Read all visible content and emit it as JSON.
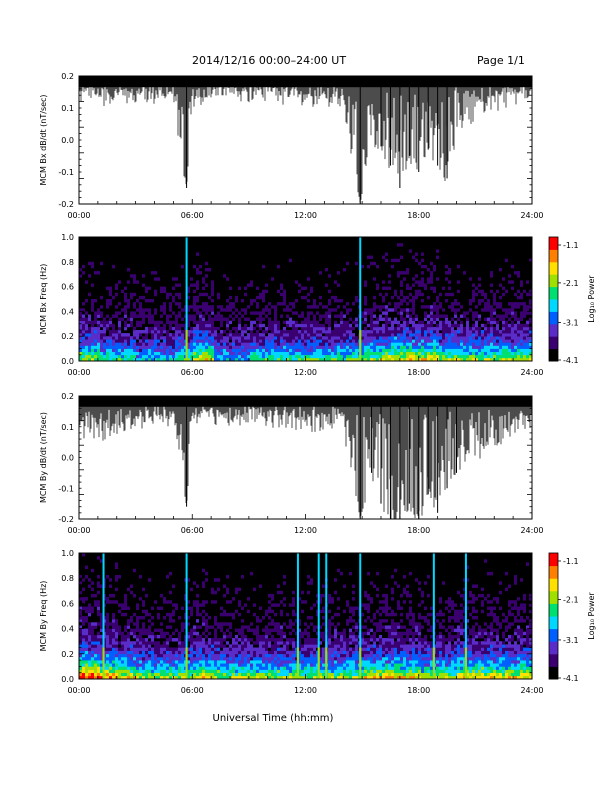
{
  "header": {
    "title": "2014/12/16  00:00–24:00 UT",
    "page": "Page 1/1"
  },
  "chart_data": [
    {
      "type": "line",
      "ylabel": "MCM Bx dB/dt (nT/sec)",
      "ylim": [
        -0.2,
        0.2
      ],
      "yticks": [
        "-0.2",
        "-0.1",
        "0.0",
        "0.1",
        "0.2"
      ],
      "xlim": [
        0,
        24
      ],
      "xticks": [
        "00:00",
        "06:00",
        "12:00",
        "18:00",
        "24:00"
      ],
      "series": [
        {
          "x": [
            0,
            1,
            2,
            3,
            4,
            5,
            5.7,
            6,
            7,
            8,
            9,
            10,
            11,
            12,
            13,
            14,
            14.9,
            15.5,
            16,
            16.5,
            17,
            17.5,
            18,
            18.5,
            19,
            19.5,
            20,
            21,
            22,
            23,
            24
          ],
          "y": [
            0.13,
            0.12,
            0.13,
            0.12,
            0.13,
            0.12,
            -0.15,
            0.12,
            0.13,
            0.14,
            0.13,
            0.13,
            0.12,
            0.12,
            0.12,
            0.11,
            -0.2,
            0.0,
            -0.02,
            -0.08,
            -0.15,
            -0.05,
            -0.1,
            -0.03,
            -0.08,
            -0.12,
            0.02,
            0.08,
            0.1,
            0.12,
            0.13
          ]
        }
      ]
    },
    {
      "type": "heatmap",
      "ylabel": "MCM Bx Freq (Hz)",
      "ylim": [
        0.0,
        1.0
      ],
      "yticks": [
        "0.0",
        "0.2",
        "0.4",
        "0.6",
        "0.8",
        "1.0"
      ],
      "xlim": [
        0,
        24
      ],
      "xticks": [
        "00:00",
        "06:00",
        "12:00",
        "18:00",
        "24:00"
      ],
      "colorbar": {
        "label": "Log₁₀ Power",
        "ticks": [
          "-1.1",
          "-2.1",
          "-3.1",
          "-4.1"
        ],
        "range": [
          -4.1,
          -1.1
        ]
      },
      "vertical_lines_hours": [
        5.7,
        14.9
      ],
      "low_freq_activity": [
        0.6,
        0.5,
        0.5,
        0.4,
        0.4,
        0.5,
        0.7,
        0.4,
        0.4,
        0.5,
        0.5,
        0.5,
        0.5,
        0.5,
        0.5,
        0.6,
        0.7,
        0.7,
        0.7,
        0.6,
        0.6,
        0.6,
        0.6,
        0.6
      ]
    },
    {
      "type": "line",
      "ylabel": "MCM By dB/dt (nT/sec)",
      "ylim": [
        -0.2,
        0.2
      ],
      "yticks": [
        "-0.2",
        "-0.1",
        "0.0",
        "0.1",
        "0.2"
      ],
      "xlim": [
        0,
        24
      ],
      "xticks": [
        "00:00",
        "06:00",
        "12:00",
        "18:00",
        "24:00"
      ],
      "series": [
        {
          "x": [
            0,
            1,
            2,
            3,
            4,
            5,
            5.7,
            6,
            7,
            8,
            9,
            10,
            11,
            12,
            13,
            14,
            14.9,
            15.5,
            16,
            16.5,
            17,
            17.5,
            18,
            18.5,
            19,
            19.5,
            20,
            21,
            22,
            23,
            24
          ],
          "y": [
            0.08,
            0.07,
            0.08,
            0.1,
            0.1,
            0.11,
            -0.16,
            0.11,
            0.12,
            0.12,
            0.12,
            0.12,
            0.1,
            0.1,
            0.1,
            0.1,
            -0.2,
            -0.05,
            -0.15,
            -0.2,
            -0.2,
            -0.15,
            -0.2,
            -0.12,
            -0.18,
            -0.1,
            -0.05,
            0.0,
            0.05,
            0.08,
            0.1
          ]
        }
      ]
    },
    {
      "type": "heatmap",
      "ylabel": "MCM By Freq (Hz)",
      "ylim": [
        0.0,
        1.0
      ],
      "yticks": [
        "0.0",
        "0.2",
        "0.4",
        "0.6",
        "0.8",
        "1.0"
      ],
      "xlim": [
        0,
        24
      ],
      "xticks": [
        "00:00",
        "06:00",
        "12:00",
        "18:00",
        "24:00"
      ],
      "colorbar": {
        "label": "Log₁₀ Power",
        "ticks": [
          "-1.1",
          "-2.1",
          "-3.1",
          "-4.1"
        ],
        "range": [
          -4.1,
          -1.1
        ]
      },
      "vertical_lines_hours": [
        1.3,
        5.7,
        11.6,
        12.7,
        13.1,
        14.9,
        18.8,
        20.5
      ],
      "low_freq_activity": [
        0.9,
        0.8,
        0.7,
        0.6,
        0.6,
        0.6,
        0.7,
        0.6,
        0.6,
        0.6,
        0.6,
        0.6,
        0.6,
        0.6,
        0.6,
        0.7,
        0.7,
        0.7,
        0.6,
        0.6,
        0.7,
        0.7,
        0.7,
        0.7
      ]
    }
  ],
  "xlabel": "Universal Time (hh:mm)",
  "colors": {
    "line": "#000000",
    "scale": [
      "#000000",
      "#3a0070",
      "#5a2cc8",
      "#0060ff",
      "#00d8ff",
      "#00e070",
      "#a0e000",
      "#ffe000",
      "#ff8000",
      "#ff0000"
    ]
  }
}
